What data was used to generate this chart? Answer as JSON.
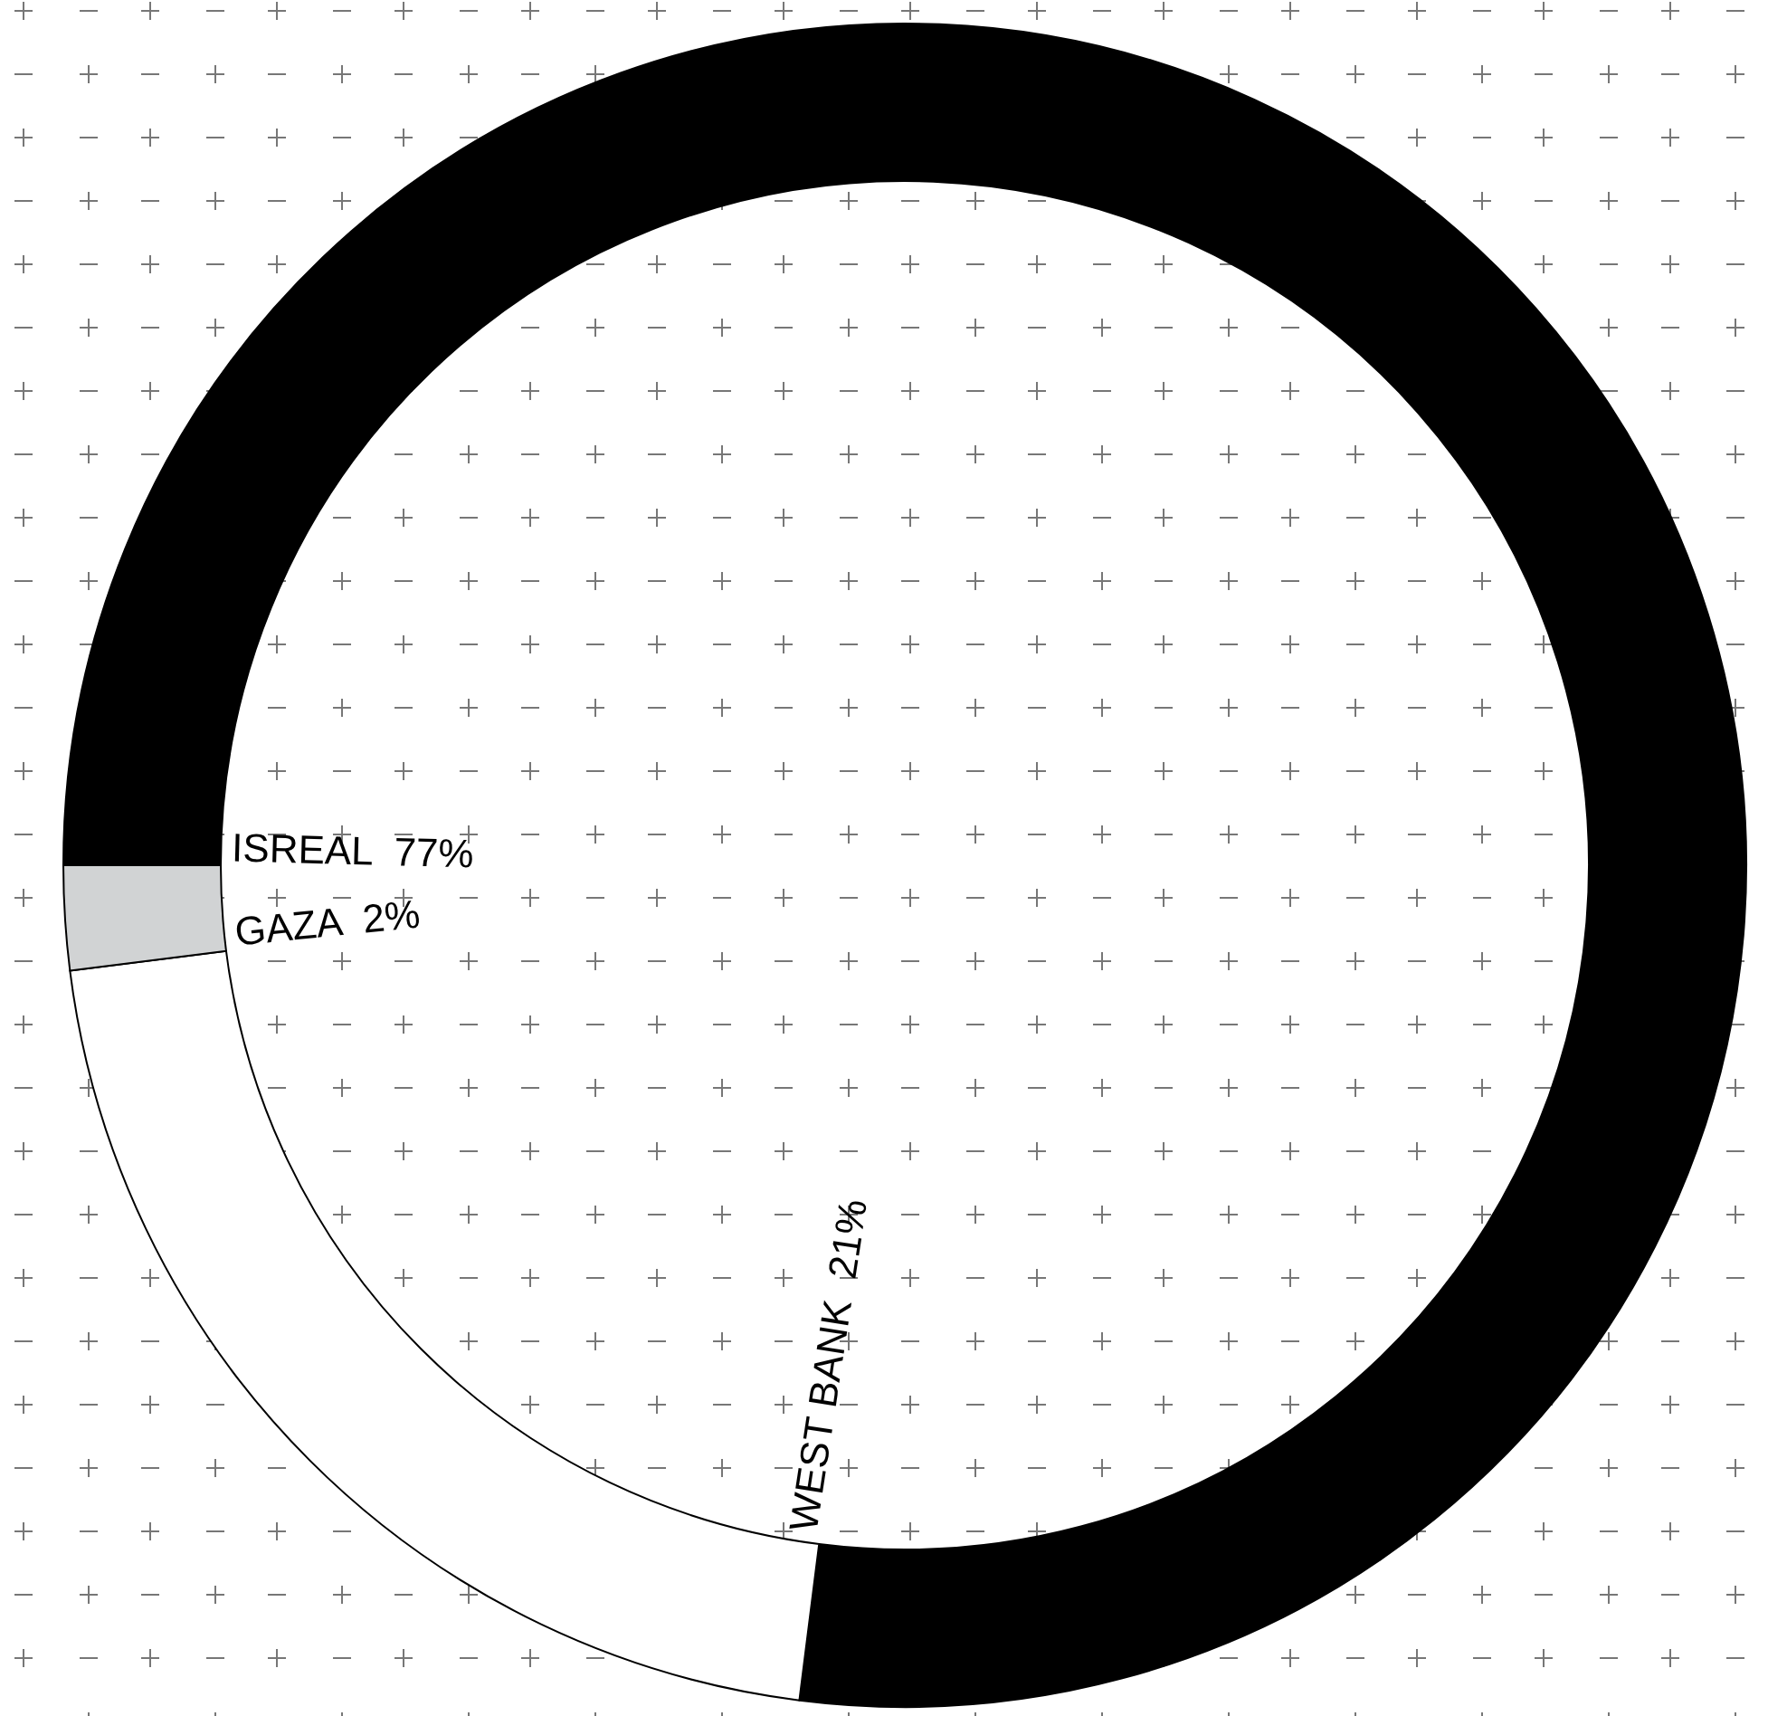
{
  "chart_data": {
    "type": "donut",
    "categories": [
      "ISREAL",
      "WEST BANK",
      "GAZA"
    ],
    "values": [
      77,
      21,
      2
    ],
    "colors": [
      "#000000",
      "#ffffff",
      "#d1d3d4"
    ],
    "value_labels": [
      "77%",
      "21%",
      "2%"
    ],
    "legend": false
  }
}
